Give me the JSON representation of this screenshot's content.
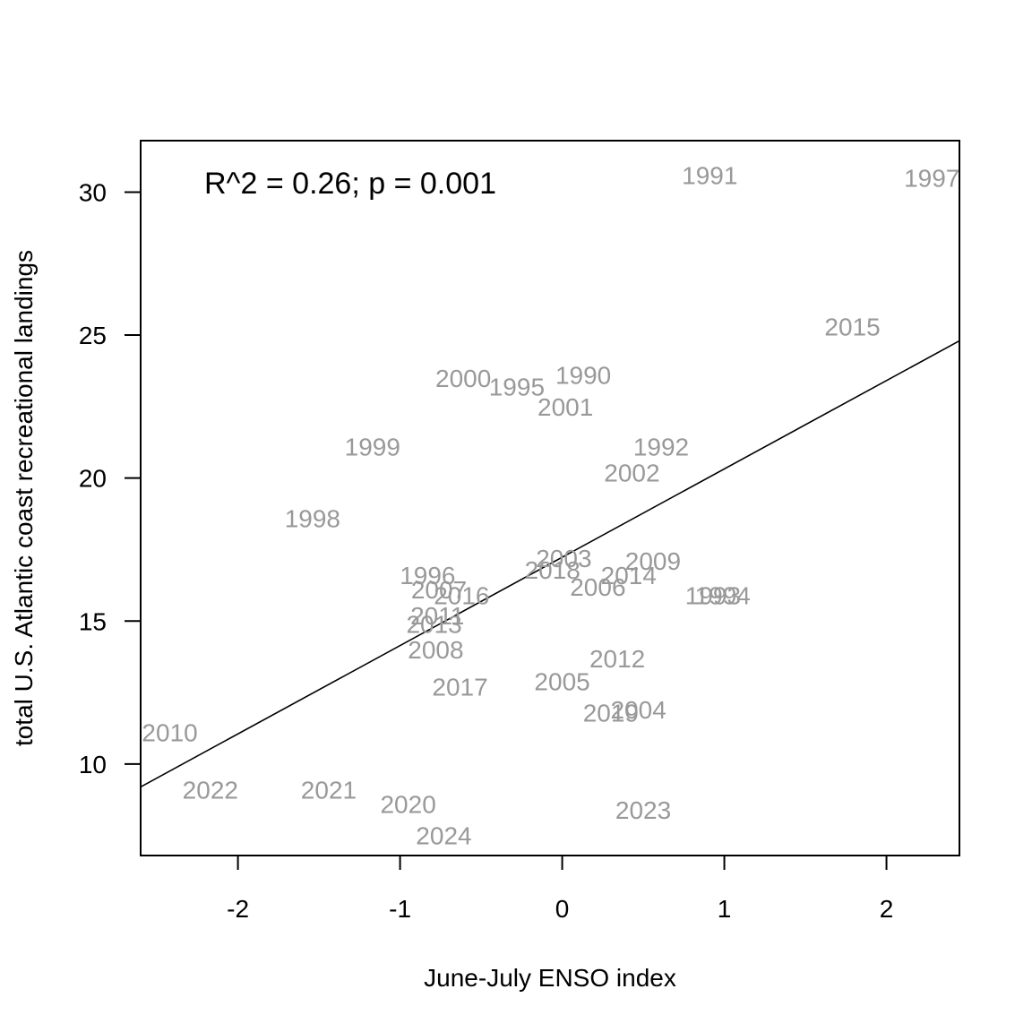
{
  "chart_data": {
    "type": "scatter",
    "title": "",
    "xlabel": "June-July ENSO index",
    "ylabel": "total U.S. Atlantic coast recreational landings",
    "xlim": [
      -2.6,
      2.45
    ],
    "ylim": [
      6.8,
      31.8
    ],
    "x_ticks": [
      -2,
      -1,
      0,
      1,
      2
    ],
    "y_ticks": [
      10,
      15,
      20,
      25,
      30
    ],
    "x_tick_labels": [
      "-2",
      "-1",
      "0",
      "1",
      "2"
    ],
    "y_tick_labels": [
      "10",
      "15",
      "20",
      "25",
      "30"
    ],
    "grid": false,
    "annotation": "R^2 = 0.26; p = 0.001",
    "point_color": "#999999",
    "line_color": "#000000",
    "regression_line": {
      "x": [
        -2.6,
        2.45
      ],
      "y": [
        9.2,
        24.8
      ]
    },
    "points": [
      {
        "label": "1990",
        "x": 0.13,
        "y": 23.6
      },
      {
        "label": "1991",
        "x": 0.91,
        "y": 30.6
      },
      {
        "label": "1992",
        "x": 0.61,
        "y": 21.1
      },
      {
        "label": "1993",
        "x": 0.93,
        "y": 15.9
      },
      {
        "label": "1994",
        "x": 0.99,
        "y": 15.9
      },
      {
        "label": "1995",
        "x": -0.28,
        "y": 23.2
      },
      {
        "label": "1996",
        "x": -0.83,
        "y": 16.6
      },
      {
        "label": "1997",
        "x": 2.28,
        "y": 30.5
      },
      {
        "label": "1998",
        "x": -1.54,
        "y": 18.6
      },
      {
        "label": "1999",
        "x": -1.17,
        "y": 21.1
      },
      {
        "label": "2000",
        "x": -0.61,
        "y": 23.5
      },
      {
        "label": "2001",
        "x": 0.02,
        "y": 22.5
      },
      {
        "label": "2002",
        "x": 0.43,
        "y": 20.2
      },
      {
        "label": "2003",
        "x": 0.01,
        "y": 17.2
      },
      {
        "label": "2004",
        "x": 0.47,
        "y": 11.9
      },
      {
        "label": "2005",
        "x": 0.0,
        "y": 12.9
      },
      {
        "label": "2006",
        "x": 0.22,
        "y": 16.2
      },
      {
        "label": "2007",
        "x": -0.76,
        "y": 16.1
      },
      {
        "label": "2008",
        "x": -0.78,
        "y": 14.0
      },
      {
        "label": "2009",
        "x": 0.56,
        "y": 17.1
      },
      {
        "label": "2010",
        "x": -2.42,
        "y": 11.1
      },
      {
        "label": "2011",
        "x": -0.77,
        "y": 15.2
      },
      {
        "label": "2012",
        "x": 0.34,
        "y": 13.7
      },
      {
        "label": "2013",
        "x": -0.79,
        "y": 14.9
      },
      {
        "label": "2014",
        "x": 0.41,
        "y": 16.6
      },
      {
        "label": "2015",
        "x": 1.79,
        "y": 25.3
      },
      {
        "label": "2016",
        "x": -0.62,
        "y": 15.9
      },
      {
        "label": "2017",
        "x": -0.63,
        "y": 12.7
      },
      {
        "label": "2018",
        "x": -0.06,
        "y": 16.8
      },
      {
        "label": "2019",
        "x": 0.3,
        "y": 11.8
      },
      {
        "label": "2020",
        "x": -0.95,
        "y": 8.6
      },
      {
        "label": "2021",
        "x": -1.44,
        "y": 9.1
      },
      {
        "label": "2022",
        "x": -2.17,
        "y": 9.1
      },
      {
        "label": "2023",
        "x": 0.5,
        "y": 8.4
      },
      {
        "label": "2024",
        "x": -0.73,
        "y": 7.5
      }
    ]
  }
}
